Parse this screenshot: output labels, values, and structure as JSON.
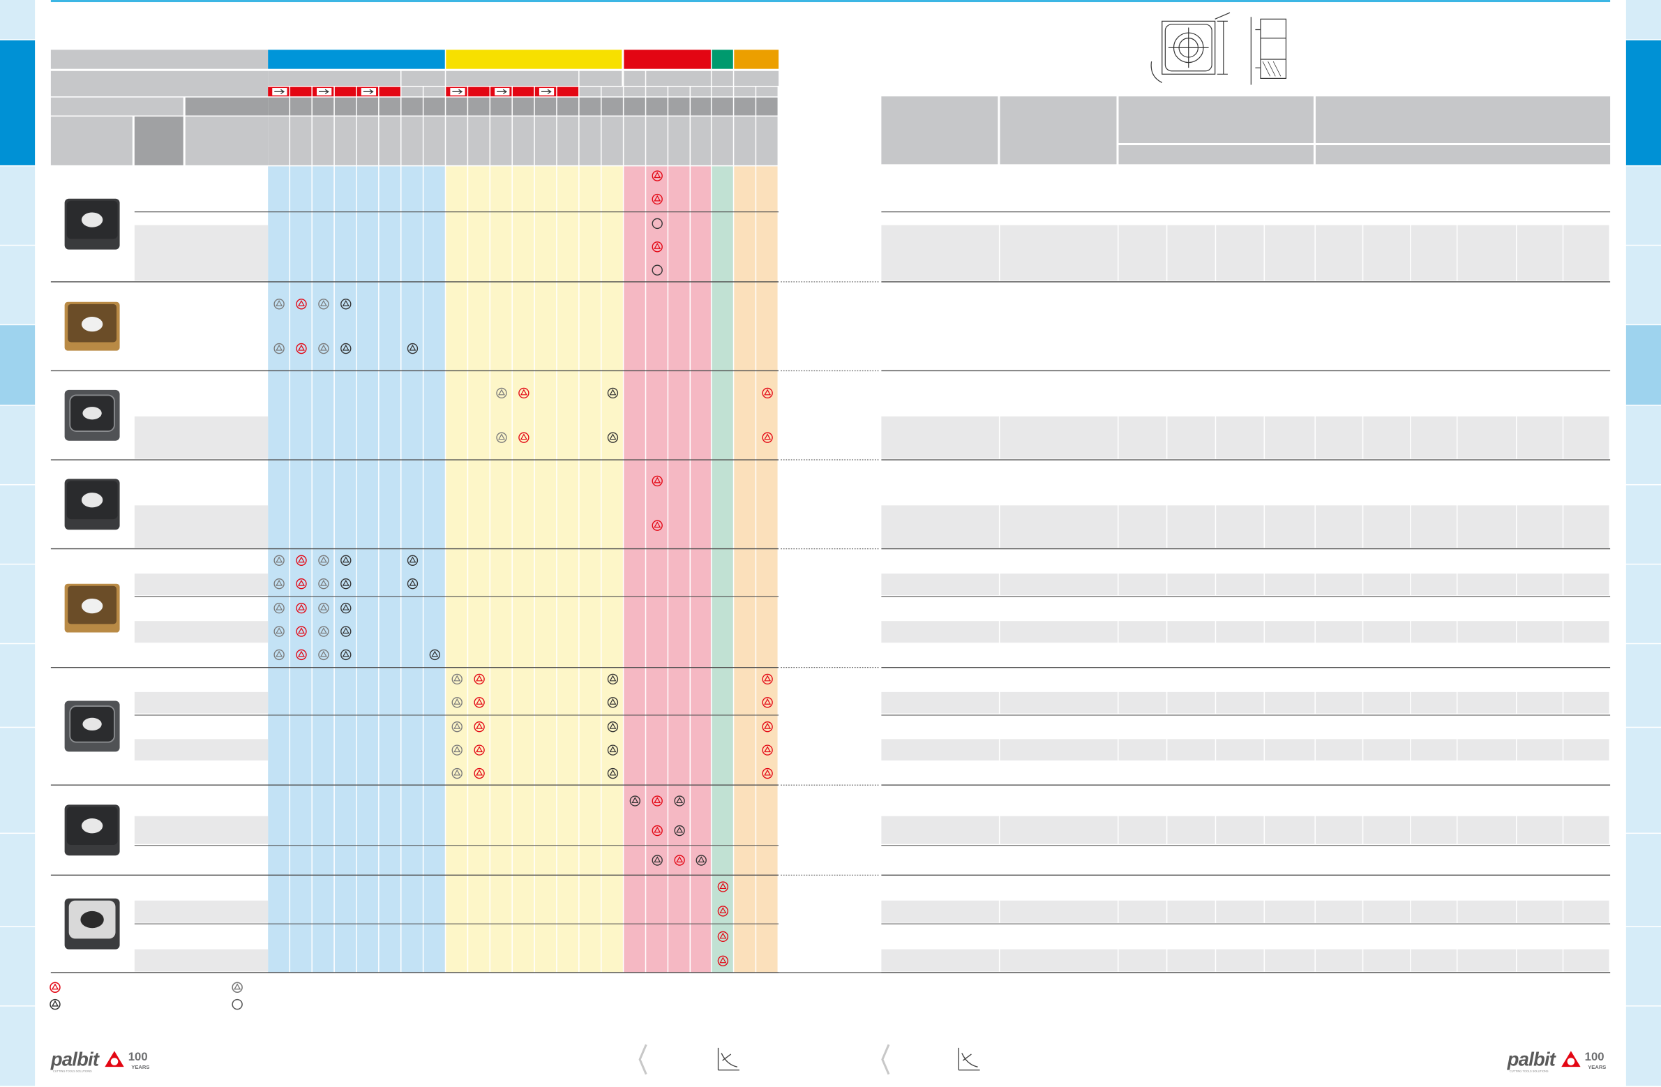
{
  "brand": {
    "logo_text": "palbit",
    "tagline": "CUTTING TOOLS SOLUTIONS",
    "anniversary_number": "100",
    "anniversary_label": "YEARS"
  },
  "colors": {
    "iso_P_blue": "#0095d9",
    "iso_M_yellow": "#f7e000",
    "iso_K_red": "#e30613",
    "iso_N_green": "#009a6e",
    "iso_S_orange": "#ec9f00",
    "tab_active": "#0091d5",
    "tab_light": "#d6ecf8",
    "header_gray": "#c6c7c9",
    "header_dark_gray": "#a0a1a3",
    "separator": "#4d4d4d"
  },
  "table": {
    "group_rows": [
      2,
      1,
      2,
      2,
      5,
      5,
      3,
      4
    ],
    "group_images": [
      "insert-dark-icon",
      "insert-gold-icon",
      "insert-chipbreaker-icon",
      "insert-dark-icon",
      "insert-gold-icon",
      "insert-chipbreaker-icon",
      "insert-dark-icon",
      "insert-wiper-icon"
    ]
  },
  "legend": {
    "items": [
      {
        "icon": "red-triangle-icon",
        "label": ""
      },
      {
        "icon": "black-triangle-icon",
        "label": ""
      },
      {
        "icon": "gray-triangle-icon",
        "label": ""
      },
      {
        "icon": "circle-icon",
        "label": ""
      }
    ]
  },
  "side_tabs": {
    "left_active_index": 0,
    "right_active_indices": [
      0,
      4
    ]
  }
}
